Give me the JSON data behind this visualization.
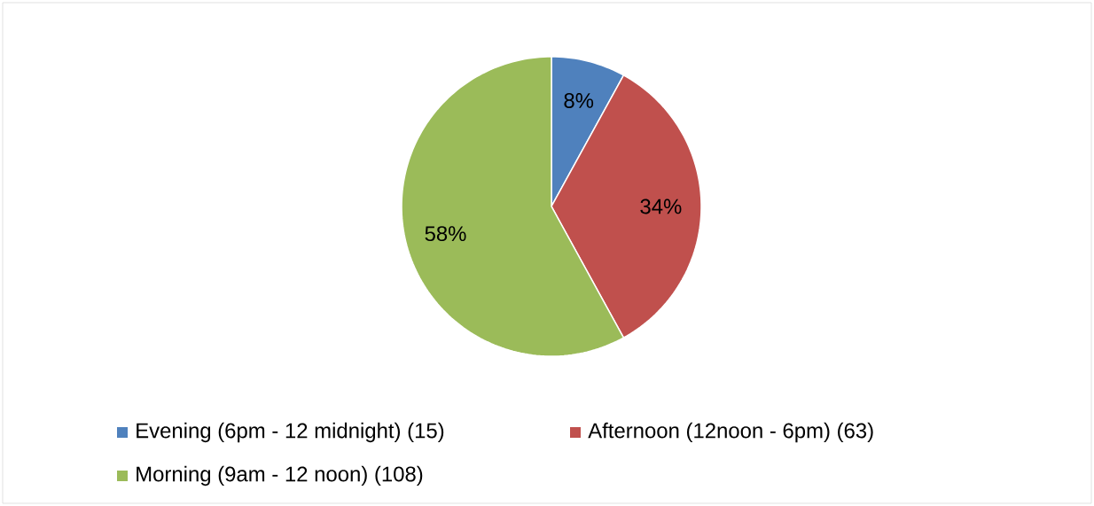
{
  "chart_data": {
    "type": "pie",
    "categories": [
      "Evening (6pm - 12 midnight) (15)",
      "Afternoon (12noon - 6pm) (63)",
      "Morning (9am - 12 noon) (108)"
    ],
    "values": [
      8,
      34,
      58
    ],
    "colors": [
      "#4f81bd",
      "#c0504d",
      "#9bbb59"
    ],
    "value_labels": [
      "8%",
      "34%",
      "58%"
    ],
    "legend": "bottom"
  }
}
